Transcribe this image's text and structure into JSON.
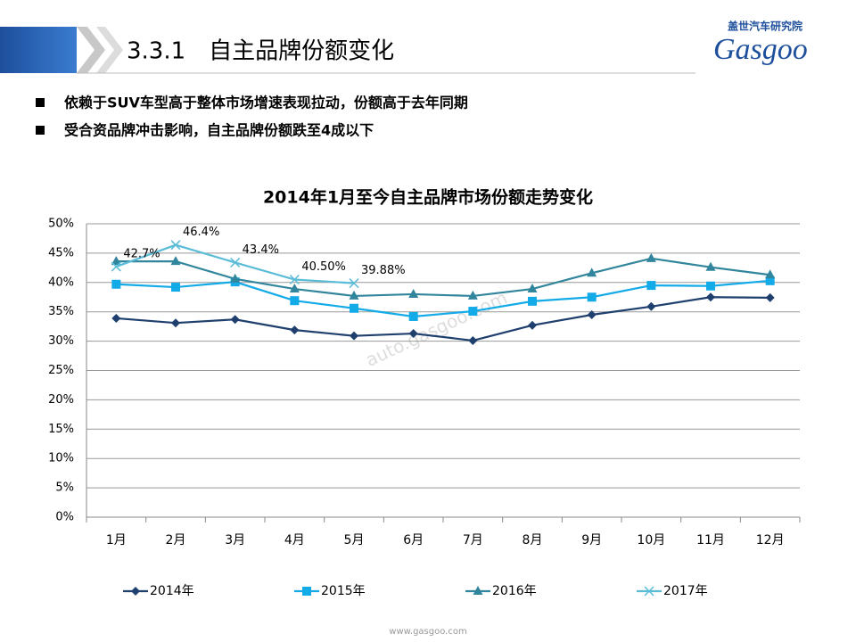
{
  "header": {
    "title": "3.3.1　自主品牌份额变化",
    "logo_cn": "盖世汽车研究院",
    "logo_en": "Gasgoo"
  },
  "bullets": [
    "依赖于SUV车型高于整体市场增速表现拉动，份额高于去年同期",
    "受合资品牌冲击影响，自主品牌份额跌至4成以下"
  ],
  "watermark": "auto.gasgoo.com",
  "footer": "www.gasgoo.com",
  "chart_data": {
    "type": "line",
    "title": "2014年1月至今自主品牌市场份额走势变化",
    "categories": [
      "1月",
      "2月",
      "3月",
      "4月",
      "5月",
      "6月",
      "7月",
      "8月",
      "9月",
      "10月",
      "11月",
      "12月"
    ],
    "series": [
      {
        "name": "2014年",
        "color": "#1f3f6e",
        "marker": "diamond",
        "values": [
          33.9,
          33.1,
          33.7,
          31.9,
          30.9,
          31.3,
          30.1,
          32.7,
          34.5,
          35.9,
          37.5,
          37.4
        ]
      },
      {
        "name": "2015年",
        "color": "#13aae8",
        "marker": "square",
        "values": [
          39.7,
          39.2,
          40.1,
          36.9,
          35.6,
          34.2,
          35.1,
          36.8,
          37.5,
          39.5,
          39.4,
          40.3
        ]
      },
      {
        "name": "2016年",
        "color": "#31859c",
        "marker": "triangle",
        "values": [
          43.6,
          43.6,
          40.6,
          38.9,
          37.7,
          38.0,
          37.7,
          38.9,
          41.6,
          44.1,
          42.6,
          41.3
        ]
      },
      {
        "name": "2017年",
        "color": "#5bbcd8",
        "marker": "x",
        "values": [
          42.7,
          46.4,
          43.4,
          40.5,
          39.88,
          null,
          null,
          null,
          null,
          null,
          null,
          null
        ],
        "value_labels": [
          "42.7%",
          "46.4%",
          "43.4%",
          "40.50%",
          "39.88%",
          null,
          null,
          null,
          null,
          null,
          null,
          null
        ]
      }
    ],
    "ylim": [
      0,
      50
    ],
    "yticks": [
      {
        "value": 0,
        "label": "0%"
      },
      {
        "value": 5,
        "label": "5%"
      },
      {
        "value": 10,
        "label": "10%"
      },
      {
        "value": 15,
        "label": "15%"
      },
      {
        "value": 20,
        "label": "20%"
      },
      {
        "value": 25,
        "label": "25%"
      },
      {
        "value": 30,
        "label": "30%"
      },
      {
        "value": 35,
        "label": "35%"
      },
      {
        "value": 40,
        "label": "40%"
      },
      {
        "value": 45,
        "label": "45%"
      },
      {
        "value": 50,
        "label": "50%"
      }
    ],
    "grid": true,
    "legend": "bottom"
  }
}
